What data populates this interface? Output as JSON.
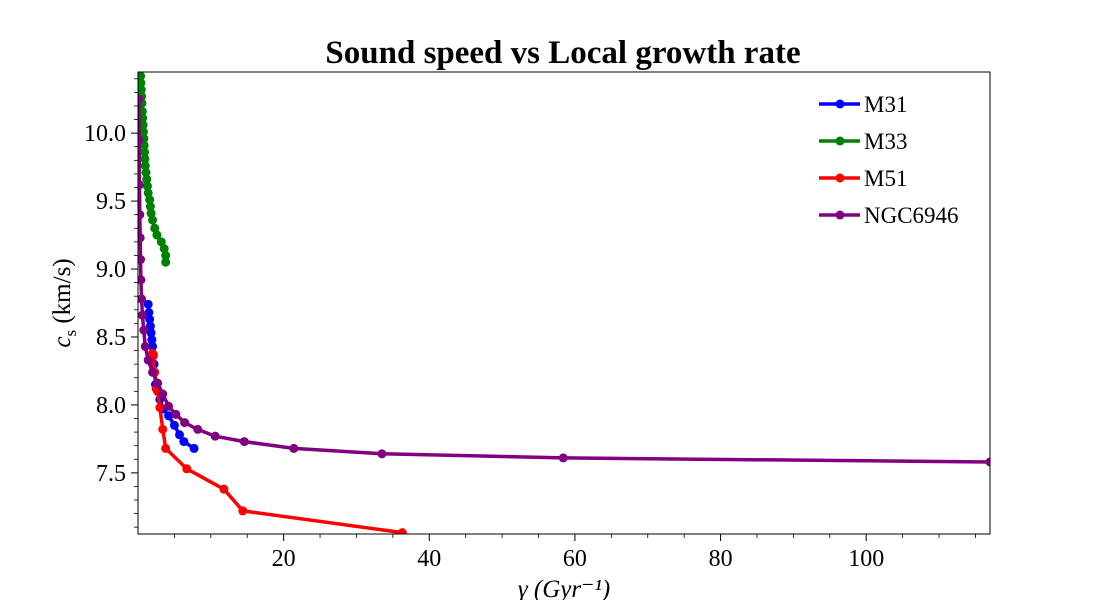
{
  "chart_data": {
    "type": "line",
    "title": "Sound speed vs Local growth rate",
    "xlabel": "γ (Gyr⁻¹)",
    "ylabel": "c_s (km/s)",
    "xlim": [
      0,
      117
    ],
    "ylim": [
      7.05,
      10.45
    ],
    "xticks": [
      20,
      40,
      60,
      80,
      100
    ],
    "xtick_labels": [
      "20",
      "40",
      "60",
      "80",
      "100"
    ],
    "yticks": [
      7.5,
      8.0,
      8.5,
      9.0,
      9.5,
      10.0
    ],
    "ytick_labels": [
      "7.5",
      "8.0",
      "8.5",
      "9.0",
      "9.5",
      "10.0"
    ],
    "grid": false,
    "legend_position": "top-right",
    "series": [
      {
        "name": "M31",
        "color": "#0000ff",
        "x": [
          1.4,
          1.5,
          1.6,
          1.7,
          1.8,
          1.9,
          2.0,
          2.1,
          2.2,
          2.4,
          2.7,
          3.0,
          3.5,
          4.2,
          5.0,
          5.7,
          6.3,
          7.7
        ],
        "y": [
          8.74,
          8.68,
          8.63,
          8.58,
          8.53,
          8.48,
          8.43,
          8.37,
          8.3,
          8.15,
          8.1,
          8.04,
          7.97,
          7.92,
          7.85,
          7.78,
          7.73,
          7.68
        ]
      },
      {
        "name": "M33",
        "color": "#008000",
        "x": [
          0.35,
          0.4,
          0.45,
          0.5,
          0.55,
          0.6,
          0.65,
          0.7,
          0.75,
          0.8,
          0.85,
          0.9,
          0.95,
          1.0,
          1.1,
          1.2,
          1.3,
          1.4,
          1.6,
          1.7,
          1.8,
          2.0,
          2.3,
          2.6,
          3.2,
          3.6,
          3.8,
          3.8
        ],
        "y": [
          10.42,
          10.37,
          10.32,
          10.27,
          10.22,
          10.16,
          10.11,
          10.06,
          10.01,
          9.96,
          9.91,
          9.86,
          9.81,
          9.76,
          9.71,
          9.66,
          9.61,
          9.56,
          9.51,
          9.46,
          9.41,
          9.36,
          9.3,
          9.25,
          9.2,
          9.15,
          9.1,
          9.05
        ]
      },
      {
        "name": "M51",
        "color": "#ff0000",
        "x": [
          2.0,
          2.1,
          2.3,
          2.5,
          2.7,
          3.0,
          3.4,
          3.8,
          6.7,
          11.8,
          14.4,
          36.3
        ],
        "y": [
          8.38,
          8.36,
          8.24,
          8.12,
          8.1,
          7.98,
          7.82,
          7.68,
          7.53,
          7.38,
          7.22,
          7.06
        ]
      },
      {
        "name": "NGC6946",
        "color": "#800080",
        "x": [
          0.1,
          0.15,
          0.2,
          0.25,
          0.3,
          0.35,
          0.4,
          0.5,
          0.6,
          0.8,
          1.0,
          1.4,
          2.0,
          2.7,
          3.4,
          4.2,
          5.2,
          6.4,
          8.2,
          10.6,
          14.6,
          21.4,
          33.5,
          58.4,
          117.0
        ],
        "y": [
          10.25,
          9.95,
          9.62,
          9.4,
          9.23,
          9.07,
          8.92,
          8.78,
          8.66,
          8.55,
          8.43,
          8.33,
          8.24,
          8.16,
          8.08,
          7.99,
          7.93,
          7.87,
          7.82,
          7.77,
          7.73,
          7.68,
          7.64,
          7.61,
          7.58
        ]
      }
    ]
  }
}
